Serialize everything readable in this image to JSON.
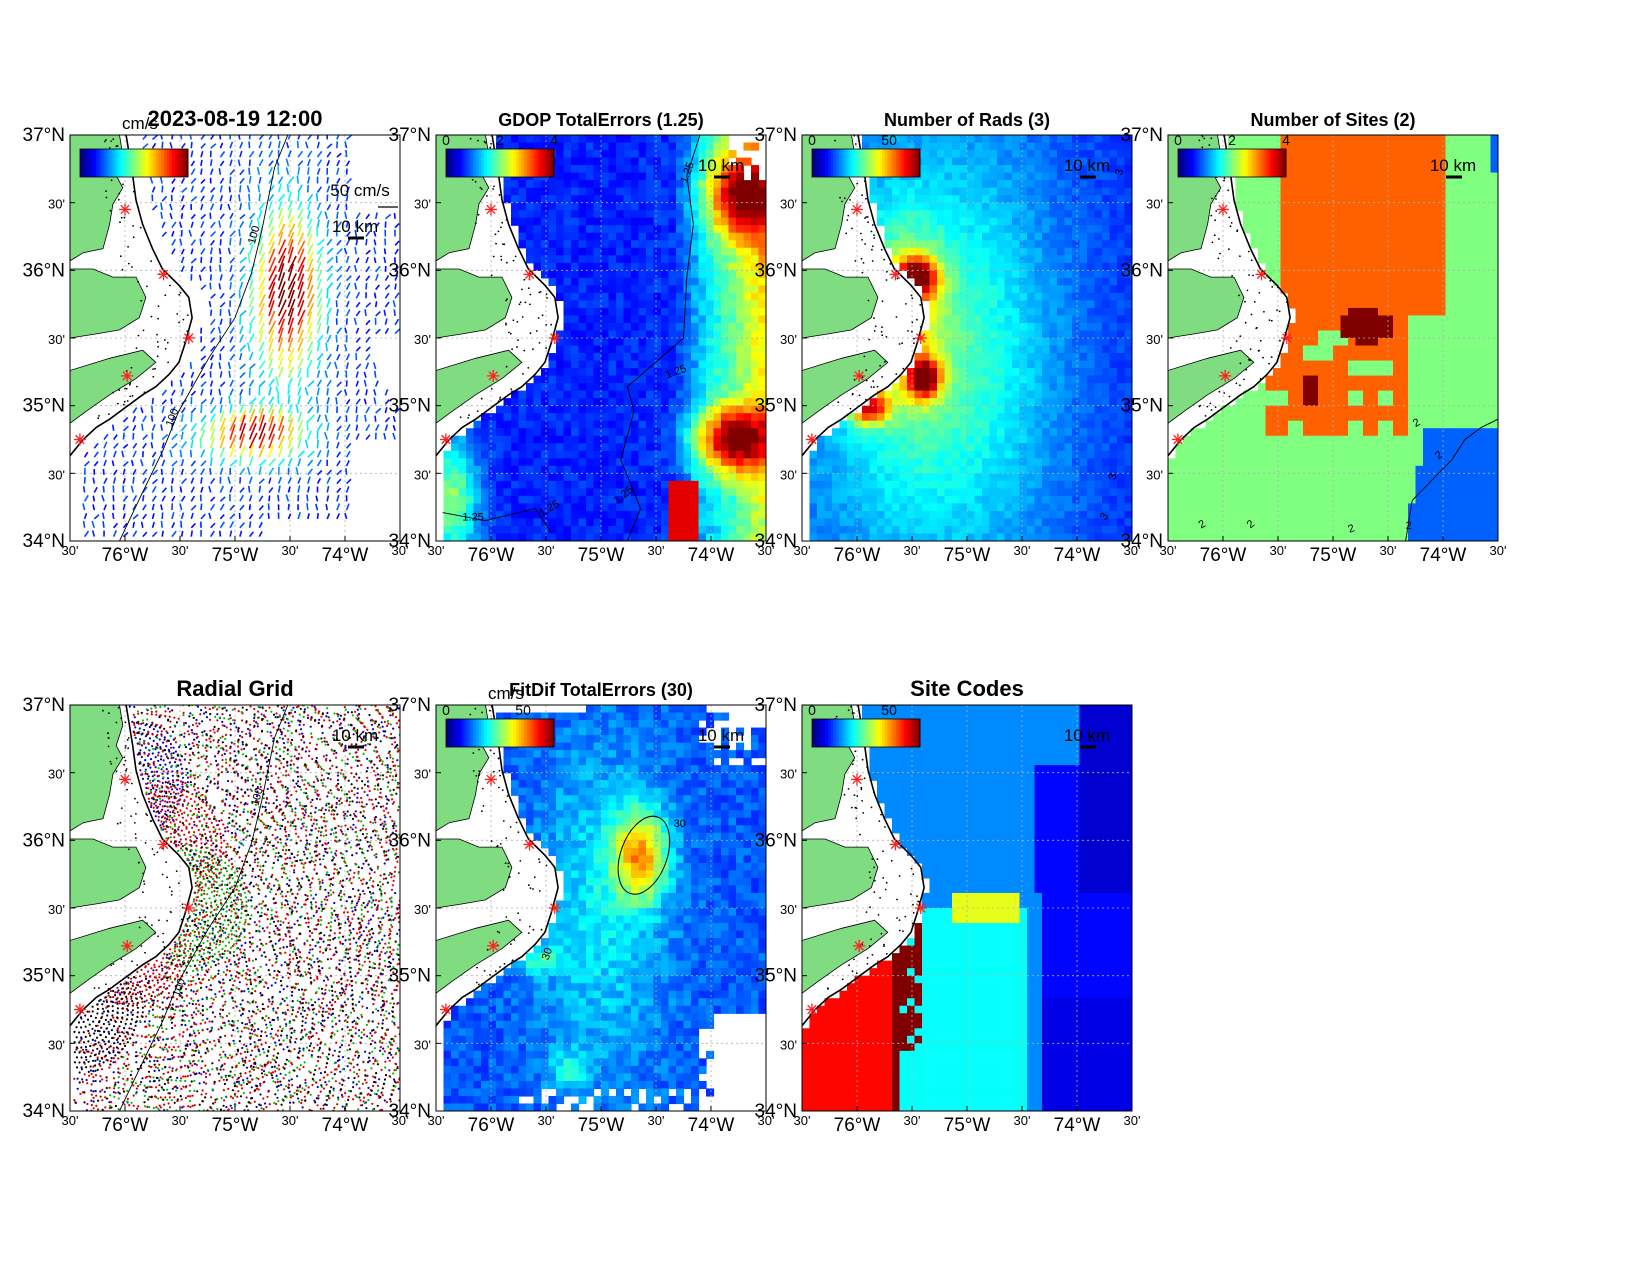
{
  "figure": {
    "panels": [
      {
        "id": "currents",
        "title": "2023-08-19 12:00",
        "cbar": {
          "unit": "cm/s",
          "ticks": []
        },
        "field": "currents",
        "scale_label": "50 cm/s",
        "contours": [
          "100",
          "100"
        ]
      },
      {
        "id": "gdop",
        "title": "GDOP TotalErrors (1.25)",
        "cbar": {
          "unit": "",
          "ticks": [
            "0",
            "2",
            "4"
          ]
        },
        "field": "gdop",
        "contours": [
          "1.25",
          "1.25",
          "1.25",
          "1.25",
          "1.25"
        ]
      },
      {
        "id": "nrads",
        "title": "Number of Rads (3)",
        "cbar": {
          "unit": "",
          "ticks": [
            "0",
            "50"
          ]
        },
        "field": "nrads",
        "contours": [
          "3",
          "3",
          "3"
        ]
      },
      {
        "id": "nsites",
        "title": "Number of Sites (2)",
        "cbar": {
          "unit": "",
          "ticks": [
            "0",
            "2",
            "4"
          ]
        },
        "field": "nsites",
        "contours": [
          "2",
          "2",
          "2",
          "2",
          "2",
          "2"
        ]
      },
      {
        "id": "radialgrid",
        "title": "Radial Grid",
        "cbar": null,
        "field": "radial",
        "contours": [
          "100",
          "100"
        ]
      },
      {
        "id": "fitdif",
        "title": "FitDif TotalErrors (30)",
        "cbar": {
          "unit": "cm/s",
          "ticks": [
            "0",
            "50"
          ]
        },
        "field": "fitdif",
        "contours": [
          "30",
          "30"
        ]
      },
      {
        "id": "sitecodes",
        "title": "Site Codes",
        "cbar": {
          "unit": "",
          "ticks": [
            "0",
            "50"
          ]
        },
        "field": "sitecodes",
        "contours": []
      }
    ],
    "lat_ticks": [
      "37°N",
      "30'",
      "36°N",
      "30'",
      "35°N",
      "30'",
      "34°N"
    ],
    "lon_ticks": [
      "30'",
      "76°W",
      "30'",
      "75°W",
      "30'",
      "74°W",
      "30'"
    ],
    "scale_bar": "10 km",
    "colors": {
      "land": "#7fdc80",
      "coast": "#000000",
      "site_marker": "#ff2020",
      "grid": "#b0b0b0"
    },
    "chart_data": {
      "type": "heatmap",
      "map_extent": {
        "lon": [
          -76.75,
          -73.75
        ],
        "lat": [
          34.0,
          37.0
        ]
      },
      "sites": [
        {
          "lon": -76.25,
          "lat": 36.45
        },
        {
          "lon": -75.9,
          "lat": 35.97
        },
        {
          "lon": -75.67,
          "lat": 35.5
        },
        {
          "lon": -76.23,
          "lat": 35.22
        },
        {
          "lon": -76.66,
          "lat": 34.75
        }
      ],
      "colorbar_ranges": {
        "gdop": [
          0,
          4
        ],
        "nrads": [
          0,
          70
        ],
        "nsites": [
          0,
          4
        ],
        "fitdif": [
          0,
          70
        ],
        "sitecodes": [
          0,
          70
        ]
      }
    }
  }
}
